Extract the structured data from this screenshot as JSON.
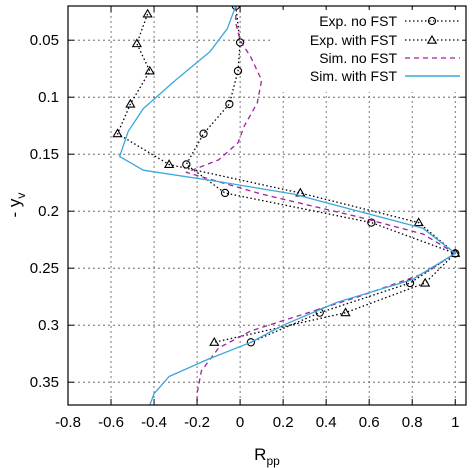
{
  "chart_data": {
    "type": "line",
    "xlabel_main": "R",
    "xlabel_sub": "pp",
    "ylabel_main": "- y",
    "ylabel_sub": "v",
    "xlim": [
      -0.8,
      1.05
    ],
    "ylim": [
      0.37,
      0.02
    ],
    "y_inverted": true,
    "grid": true,
    "legend_position": "top-right",
    "x_ticks": [
      -0.8,
      -0.6,
      -0.4,
      -0.2,
      0,
      0.2,
      0.4,
      0.6,
      0.8,
      1
    ],
    "x_tick_labels": [
      "-0.8",
      "-0.6",
      "-0.4",
      "-0.2",
      "0",
      "0.2",
      "0.4",
      "0.6",
      "0.8",
      "1"
    ],
    "y_ticks": [
      0.05,
      0.1,
      0.15,
      0.2,
      0.25,
      0.3,
      0.35
    ],
    "y_tick_labels": [
      "0.05",
      "0.1",
      "0.15",
      "0.2",
      "0.25",
      "0.3",
      "0.35"
    ],
    "series": [
      {
        "name": "Exp. no FST",
        "style": "dotted-circle",
        "color": "#000000",
        "points": [
          {
            "x": -0.02,
            "y": 0.02
          },
          {
            "x": 0.0,
            "y": 0.052
          },
          {
            "x": -0.01,
            "y": 0.077
          },
          {
            "x": -0.05,
            "y": 0.106
          },
          {
            "x": -0.17,
            "y": 0.132
          },
          {
            "x": -0.25,
            "y": 0.159
          },
          {
            "x": -0.07,
            "y": 0.184
          },
          {
            "x": 0.61,
            "y": 0.21
          },
          {
            "x": 1.0,
            "y": 0.237
          },
          {
            "x": 0.79,
            "y": 0.263
          },
          {
            "x": 0.37,
            "y": 0.289
          },
          {
            "x": 0.05,
            "y": 0.315
          }
        ]
      },
      {
        "name": "Exp. with FST",
        "style": "dotted-triangle",
        "color": "#000000",
        "points": [
          {
            "x": -0.43,
            "y": 0.027
          },
          {
            "x": -0.48,
            "y": 0.053
          },
          {
            "x": -0.42,
            "y": 0.077
          },
          {
            "x": -0.51,
            "y": 0.106
          },
          {
            "x": -0.57,
            "y": 0.132
          },
          {
            "x": -0.33,
            "y": 0.159
          },
          {
            "x": 0.28,
            "y": 0.184
          },
          {
            "x": 0.83,
            "y": 0.21
          },
          {
            "x": 1.0,
            "y": 0.237
          },
          {
            "x": 0.86,
            "y": 0.263
          },
          {
            "x": 0.49,
            "y": 0.289
          },
          {
            "x": -0.12,
            "y": 0.315
          }
        ]
      },
      {
        "name": "Sim. no FST",
        "style": "dashed",
        "color": "#a020a0",
        "points": [
          {
            "x": -0.02,
            "y": 0.02
          },
          {
            "x": -0.02,
            "y": 0.035
          },
          {
            "x": 0.0,
            "y": 0.05
          },
          {
            "x": 0.05,
            "y": 0.065
          },
          {
            "x": 0.1,
            "y": 0.085
          },
          {
            "x": 0.08,
            "y": 0.105
          },
          {
            "x": 0.02,
            "y": 0.125
          },
          {
            "x": -0.01,
            "y": 0.14
          },
          {
            "x": -0.1,
            "y": 0.155
          },
          {
            "x": -0.25,
            "y": 0.166
          },
          {
            "x": 0.1,
            "y": 0.185
          },
          {
            "x": 0.55,
            "y": 0.205
          },
          {
            "x": 0.85,
            "y": 0.22
          },
          {
            "x": 1.0,
            "y": 0.237
          },
          {
            "x": 0.85,
            "y": 0.255
          },
          {
            "x": 0.55,
            "y": 0.275
          },
          {
            "x": 0.3,
            "y": 0.29
          },
          {
            "x": 0.05,
            "y": 0.305
          },
          {
            "x": -0.1,
            "y": 0.32
          },
          {
            "x": -0.18,
            "y": 0.34
          },
          {
            "x": -0.2,
            "y": 0.36
          },
          {
            "x": -0.2,
            "y": 0.37
          }
        ]
      },
      {
        "name": "Sim. with FST",
        "style": "solid",
        "color": "#3ba7dd",
        "points": [
          {
            "x": -0.02,
            "y": 0.02
          },
          {
            "x": -0.06,
            "y": 0.04
          },
          {
            "x": -0.14,
            "y": 0.06
          },
          {
            "x": -0.3,
            "y": 0.085
          },
          {
            "x": -0.45,
            "y": 0.11
          },
          {
            "x": -0.52,
            "y": 0.13
          },
          {
            "x": -0.56,
            "y": 0.152
          },
          {
            "x": -0.45,
            "y": 0.164
          },
          {
            "x": -0.1,
            "y": 0.174
          },
          {
            "x": 0.25,
            "y": 0.185
          },
          {
            "x": 0.55,
            "y": 0.2
          },
          {
            "x": 0.85,
            "y": 0.215
          },
          {
            "x": 1.0,
            "y": 0.237
          },
          {
            "x": 0.8,
            "y": 0.26
          },
          {
            "x": 0.45,
            "y": 0.28
          },
          {
            "x": 0.2,
            "y": 0.3
          },
          {
            "x": 0.05,
            "y": 0.315
          },
          {
            "x": -0.15,
            "y": 0.33
          },
          {
            "x": -0.33,
            "y": 0.345
          },
          {
            "x": -0.4,
            "y": 0.36
          },
          {
            "x": -0.42,
            "y": 0.37
          }
        ]
      }
    ]
  }
}
